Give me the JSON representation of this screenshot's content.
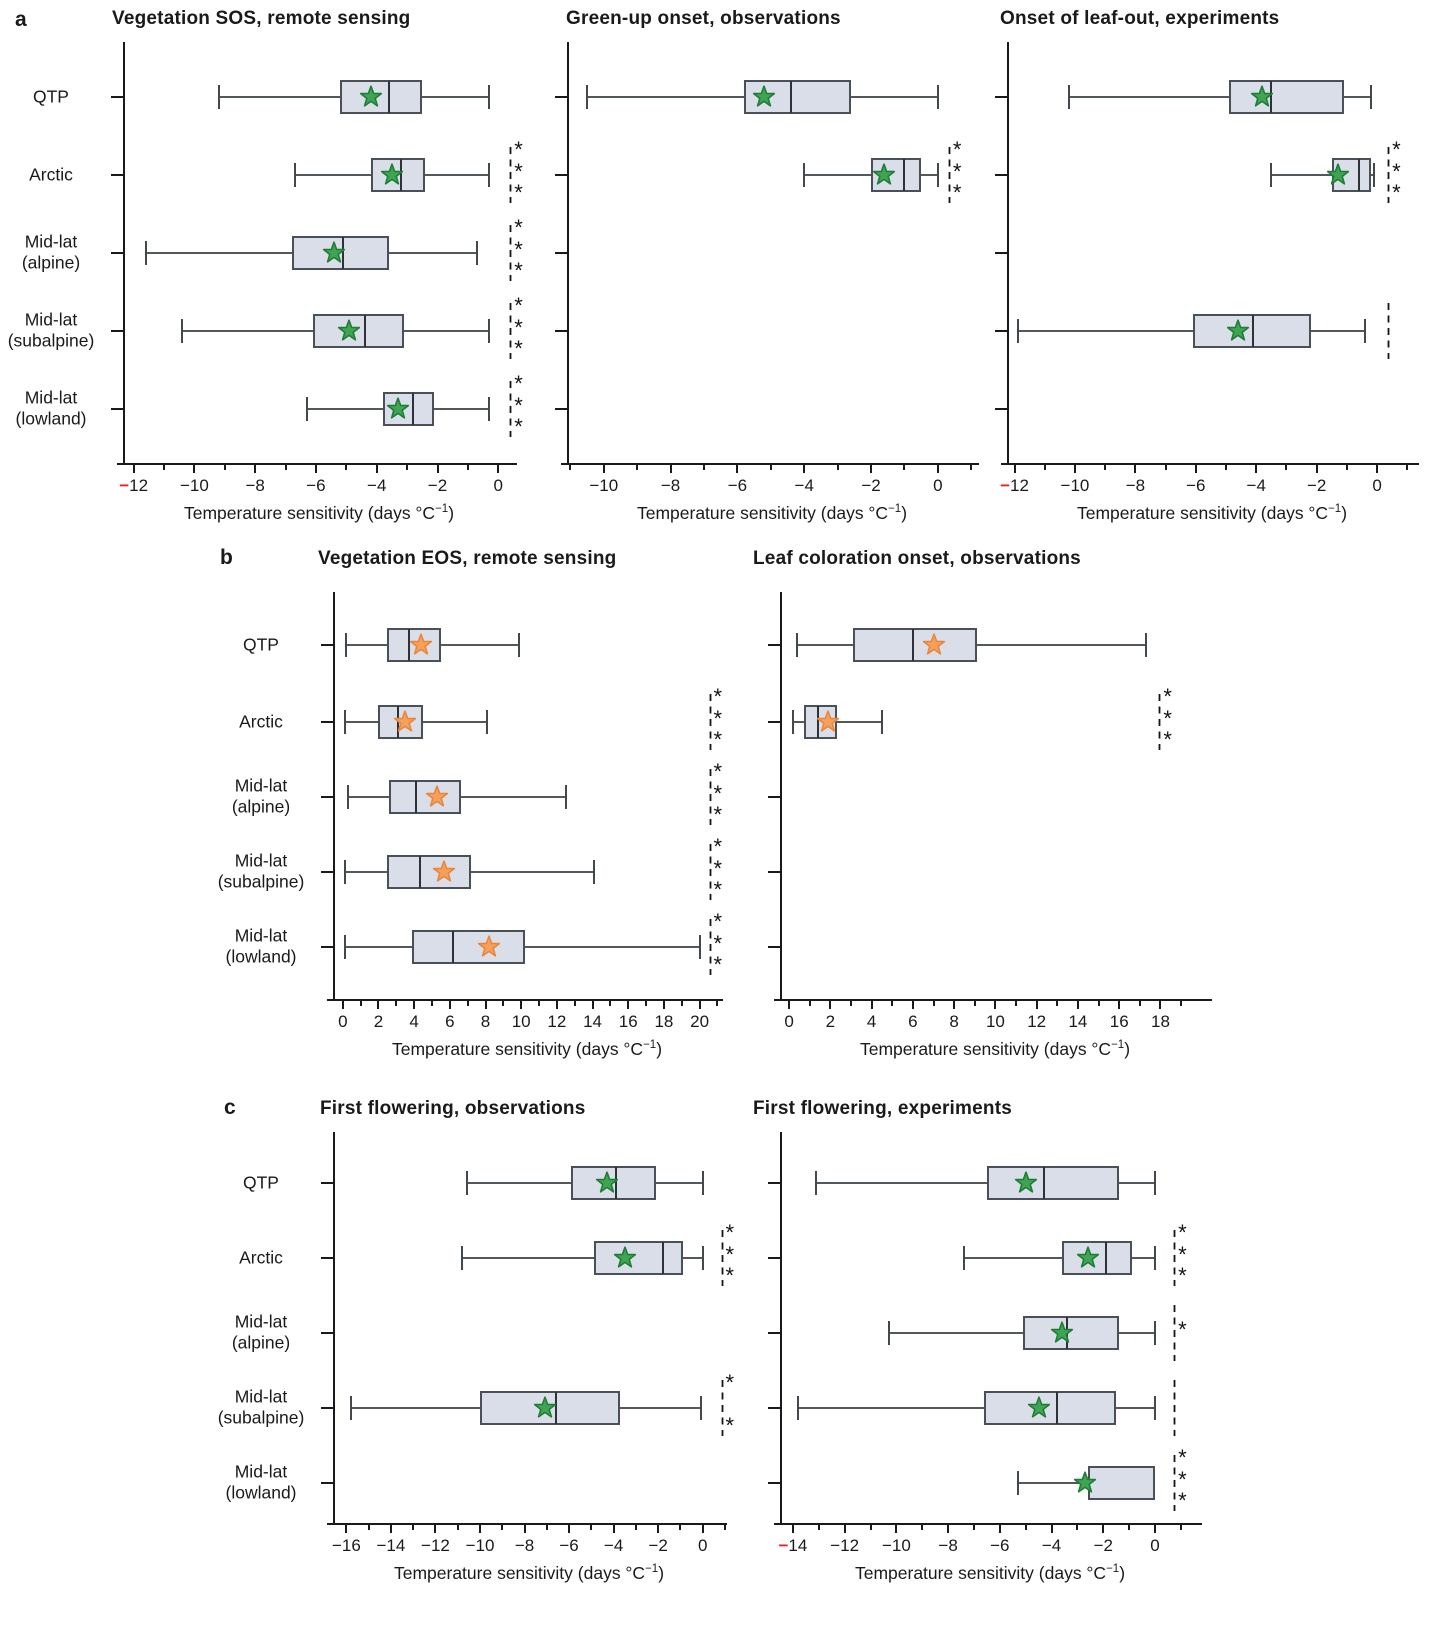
{
  "figure": {
    "row_letters": [
      "a",
      "b",
      "c"
    ]
  },
  "colors": {
    "box_fill": "#d9dee8",
    "box_border": "#4a5058",
    "whisker": "#53585e",
    "cap": "#43484e",
    "axis": "#1a1a1a",
    "green_star_fill": "#41a452",
    "green_star_border": "#1e7e38",
    "orange_star_fill": "#f7a05c",
    "orange_star_border": "#e8873c",
    "red_mark": "#ea2127",
    "sig_mark": "#151515"
  },
  "categories": [
    [
      "QTP"
    ],
    [
      "Arctic"
    ],
    [
      "Mid-lat",
      "(alpine)"
    ],
    [
      "Mid-lat",
      "(subalpine)"
    ],
    [
      "Mid-lat",
      "(lowland)"
    ]
  ],
  "chart_data": [
    {
      "id": "a1",
      "row": "a",
      "type": "box",
      "title": "Vegetation SOS, remote sensing",
      "xlabel": {
        "base": "Temperature sensitivity (days °C",
        "sup": "−1",
        "end": ")"
      },
      "xlim": [
        -12.35,
        0.55
      ],
      "xticks": [
        -12,
        -10,
        -8,
        -6,
        -4,
        -2,
        0
      ],
      "minor_tick_every": 1,
      "red_tick": -12,
      "star_color": "green",
      "show_category_labels": true,
      "sig_x": 0.36,
      "boxes": [
        {
          "category": "QTP",
          "row": 0,
          "whisker_low": -9.2,
          "q1": -5.2,
          "median": -3.6,
          "q3": -2.5,
          "whisker_high": -0.3,
          "mean": -4.2,
          "sig": null
        },
        {
          "category": "Arctic",
          "row": 1,
          "whisker_low": -6.7,
          "q1": -4.2,
          "median": -3.2,
          "q3": -2.4,
          "whisker_high": -0.3,
          "mean": -3.5,
          "sig": [
            "*",
            "*",
            "*"
          ]
        },
        {
          "category": "Mid-lat (alpine)",
          "row": 2,
          "whisker_low": -11.6,
          "q1": -6.8,
          "median": -5.1,
          "q3": -3.6,
          "whisker_high": -0.7,
          "mean": -5.4,
          "sig": [
            "*",
            "*",
            "*"
          ]
        },
        {
          "category": "Mid-lat (subalpine)",
          "row": 3,
          "whisker_low": -10.4,
          "q1": -6.1,
          "median": -4.4,
          "q3": -3.1,
          "whisker_high": -0.3,
          "mean": -4.9,
          "sig": [
            "*",
            "*",
            "*"
          ]
        },
        {
          "category": "Mid-lat (lowland)",
          "row": 4,
          "whisker_low": -6.3,
          "q1": -3.8,
          "median": -2.8,
          "q3": -2.1,
          "whisker_high": -0.3,
          "mean": -3.3,
          "sig": [
            "*",
            "*",
            "*"
          ]
        }
      ]
    },
    {
      "id": "a2",
      "row": "a",
      "type": "box",
      "title": "Green-up onset, observations",
      "xlabel": {
        "base": "Temperature sensitivity (days °C",
        "sup": "−1",
        "end": ")"
      },
      "xlim": [
        -11.1,
        1.17
      ],
      "xticks": [
        -10,
        -8,
        -6,
        -4,
        -2,
        0
      ],
      "minor_tick_every": 1,
      "red_tick": null,
      "star_color": "green",
      "show_category_labels": false,
      "sig_x": 0.3,
      "boxes": [
        {
          "category": "QTP",
          "row": 0,
          "whisker_low": -10.5,
          "q1": -5.8,
          "median": -4.4,
          "q3": -2.6,
          "whisker_high": 0.0,
          "mean": -5.2,
          "sig": null
        },
        {
          "category": "Arctic",
          "row": 1,
          "whisker_low": -4.0,
          "q1": -2.0,
          "median": -1.0,
          "q3": -0.5,
          "whisker_high": 0.0,
          "mean": -1.6,
          "sig": [
            "*",
            "*",
            "*"
          ]
        }
      ]
    },
    {
      "id": "a3",
      "row": "a",
      "type": "box",
      "title": "Onset of leaf-out, experiments",
      "xlabel": {
        "base": "Temperature sensitivity (days °C",
        "sup": "−1",
        "end": ")"
      },
      "xlim": [
        -12.25,
        1.32
      ],
      "xticks": [
        -12,
        -10,
        -8,
        -6,
        -4,
        -2,
        0
      ],
      "minor_tick_every": 1,
      "red_tick": -12,
      "star_color": "green",
      "show_category_labels": false,
      "sig_x": 0.33,
      "boxes": [
        {
          "category": "QTP",
          "row": 0,
          "whisker_low": -10.2,
          "q1": -4.9,
          "median": -3.5,
          "q3": -1.1,
          "whisker_high": -0.2,
          "mean": -3.8,
          "sig": null
        },
        {
          "category": "Arctic",
          "row": 1,
          "whisker_low": -3.5,
          "q1": -1.5,
          "median": -0.6,
          "q3": -0.2,
          "whisker_high": -0.1,
          "mean": -1.3,
          "sig": [
            "*",
            "*",
            "*"
          ]
        },
        {
          "category": "Mid-lat (subalpine)",
          "row": 3,
          "whisker_low": -11.9,
          "q1": -6.1,
          "median": -4.1,
          "q3": -2.2,
          "whisker_high": -0.4,
          "mean": -4.6,
          "sig": [
            "",
            "",
            ""
          ]
        }
      ]
    },
    {
      "id": "b1",
      "row": "b",
      "type": "box",
      "title": "Vegetation EOS, remote sensing",
      "xlabel": {
        "base": "Temperature sensitivity (days °C",
        "sup": "−1",
        "end": ")"
      },
      "xlim": [
        -0.55,
        21.2
      ],
      "xticks": [
        0,
        2,
        4,
        6,
        8,
        10,
        12,
        14,
        16,
        18,
        20
      ],
      "minor_tick_every": 1,
      "red_tick": null,
      "star_color": "orange",
      "show_category_labels": true,
      "sig_x": 20.5,
      "boxes": [
        {
          "category": "QTP",
          "row": 0,
          "whisker_low": 0.2,
          "q1": 2.5,
          "median": 3.7,
          "q3": 5.5,
          "whisker_high": 9.9,
          "mean": 4.4,
          "sig": null
        },
        {
          "category": "Arctic",
          "row": 1,
          "whisker_low": 0.1,
          "q1": 2.0,
          "median": 3.1,
          "q3": 4.5,
          "whisker_high": 8.1,
          "mean": 3.5,
          "sig": [
            "*",
            "*",
            "*"
          ]
        },
        {
          "category": "Mid-lat (alpine)",
          "row": 2,
          "whisker_low": 0.3,
          "q1": 2.6,
          "median": 4.1,
          "q3": 6.6,
          "whisker_high": 12.5,
          "mean": 5.3,
          "sig": [
            "*",
            "*",
            "*"
          ]
        },
        {
          "category": "Mid-lat (subalpine)",
          "row": 3,
          "whisker_low": 0.1,
          "q1": 2.5,
          "median": 4.3,
          "q3": 7.2,
          "whisker_high": 14.1,
          "mean": 5.7,
          "sig": [
            "*",
            "*",
            "*"
          ]
        },
        {
          "category": "Mid-lat (lowland)",
          "row": 4,
          "whisker_low": 0.1,
          "q1": 3.9,
          "median": 6.2,
          "q3": 10.2,
          "whisker_high": 20.0,
          "mean": 8.2,
          "sig": [
            "*",
            "*",
            "*"
          ]
        }
      ]
    },
    {
      "id": "b2",
      "row": "b",
      "type": "box",
      "title": "Leaf coloration onset, observations",
      "xlabel": {
        "base": "Temperature sensitivity (days °C",
        "sup": "−1",
        "end": ")"
      },
      "xlim": [
        -0.44,
        20.4
      ],
      "xticks": [
        0,
        2,
        4,
        6,
        8,
        10,
        12,
        14,
        16,
        18
      ],
      "minor_tick_every": 1,
      "red_tick": null,
      "star_color": "orange",
      "show_category_labels": false,
      "sig_x": 17.9,
      "boxes": [
        {
          "category": "QTP",
          "row": 0,
          "whisker_low": 0.4,
          "q1": 3.1,
          "median": 6.0,
          "q3": 9.1,
          "whisker_high": 17.3,
          "mean": 7.0,
          "sig": null
        },
        {
          "category": "Arctic",
          "row": 1,
          "whisker_low": 0.2,
          "q1": 0.7,
          "median": 1.4,
          "q3": 2.3,
          "whisker_high": 4.5,
          "mean": 1.9,
          "sig": [
            "*",
            "*",
            "*"
          ]
        }
      ]
    },
    {
      "id": "c1",
      "row": "c",
      "type": "box",
      "title": "First flowering, observations",
      "xlabel": {
        "base": "Temperature sensitivity (days °C",
        "sup": "−1",
        "end": ")"
      },
      "xlim": [
        -16.6,
        1.0
      ],
      "xticks": [
        -16,
        -14,
        -12,
        -10,
        -8,
        -6,
        -4,
        -2,
        0
      ],
      "minor_tick_every": 1,
      "red_tick": null,
      "star_color": "green",
      "show_category_labels": true,
      "sig_x": 0.8,
      "boxes": [
        {
          "category": "QTP",
          "row": 0,
          "whisker_low": -10.6,
          "q1": -5.9,
          "median": -3.9,
          "q3": -2.1,
          "whisker_high": 0.0,
          "mean": -4.3,
          "sig": null
        },
        {
          "category": "Arctic",
          "row": 1,
          "whisker_low": -10.8,
          "q1": -4.9,
          "median": -1.8,
          "q3": -0.9,
          "whisker_high": 0.0,
          "mean": -3.5,
          "sig": [
            "*",
            "*",
            "*"
          ]
        },
        {
          "category": "Mid-lat (subalpine)",
          "row": 3,
          "whisker_low": -15.8,
          "q1": -10.0,
          "median": -6.6,
          "q3": -3.7,
          "whisker_high": -0.1,
          "mean": -7.1,
          "sig": [
            "*",
            "",
            "*"
          ]
        }
      ]
    },
    {
      "id": "c2",
      "row": "c",
      "type": "box",
      "title": "First flowering, experiments",
      "xlabel": {
        "base": "Temperature sensitivity (days °C",
        "sup": "−1",
        "end": ")"
      },
      "xlim": [
        -14.5,
        1.74
      ],
      "xticks": [
        -14,
        -12,
        -10,
        -8,
        -6,
        -4,
        -2,
        0
      ],
      "minor_tick_every": 1,
      "red_tick": -14,
      "star_color": "green",
      "show_category_labels": false,
      "sig_x": 0.7,
      "boxes": [
        {
          "category": "QTP",
          "row": 0,
          "whisker_low": -13.1,
          "q1": -6.5,
          "median": -4.3,
          "q3": -1.4,
          "whisker_high": 0.0,
          "mean": -5.0,
          "sig": null
        },
        {
          "category": "Arctic",
          "row": 1,
          "whisker_low": -7.4,
          "q1": -3.6,
          "median": -1.9,
          "q3": -0.9,
          "whisker_high": 0.0,
          "mean": -2.6,
          "sig": [
            "*",
            "*",
            "*"
          ]
        },
        {
          "category": "Mid-lat (alpine)",
          "row": 2,
          "whisker_low": -10.3,
          "q1": -5.1,
          "median": -3.4,
          "q3": -1.4,
          "whisker_high": 0.0,
          "mean": -3.6,
          "sig": [
            "",
            "*",
            ""
          ]
        },
        {
          "category": "Mid-lat (subalpine)",
          "row": 3,
          "whisker_low": -13.8,
          "q1": -6.6,
          "median": -3.8,
          "q3": -1.5,
          "whisker_high": 0.0,
          "mean": -4.5,
          "sig": [
            "",
            "",
            ""
          ]
        },
        {
          "category": "Mid-lat (lowland)",
          "row": 4,
          "whisker_low": -5.3,
          "q1": -2.6,
          "median": null,
          "q3": 0.0,
          "whisker_high": 0.0,
          "mean": -2.7,
          "sig": [
            "*",
            "*",
            "*"
          ]
        }
      ]
    }
  ]
}
